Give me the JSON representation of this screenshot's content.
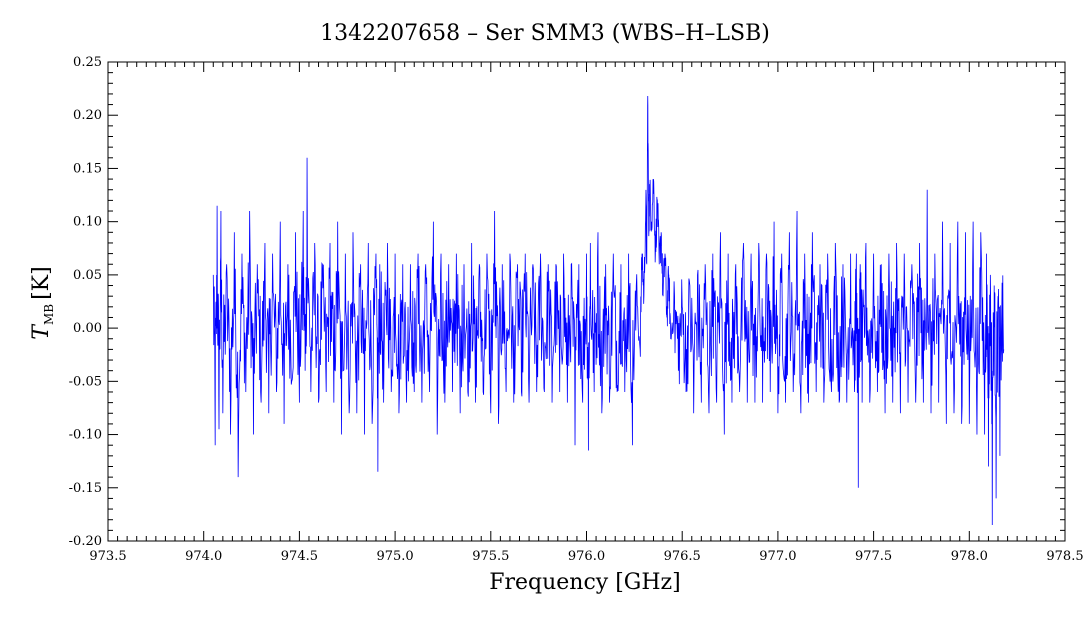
{
  "chart_data": {
    "type": "line",
    "title": "1342207658 – Ser SMM3 (WBS–H–LSB)",
    "xlabel": "Frequency [GHz]",
    "ylabel_main": "T",
    "ylabel_sub": "MB",
    "ylabel_unit": "[K]",
    "xlim": [
      973.5,
      978.5
    ],
    "ylim": [
      -0.2,
      0.25
    ],
    "x_ticks": [
      {
        "value": 973.5,
        "label": "973.5"
      },
      {
        "value": 974.0,
        "label": "974.0"
      },
      {
        "value": 974.5,
        "label": "974.5"
      },
      {
        "value": 975.0,
        "label": "975.0"
      },
      {
        "value": 975.5,
        "label": "975.5"
      },
      {
        "value": 976.0,
        "label": "976.0"
      },
      {
        "value": 976.5,
        "label": "976.5"
      },
      {
        "value": 977.0,
        "label": "977.0"
      },
      {
        "value": 977.5,
        "label": "977.5"
      },
      {
        "value": 978.0,
        "label": "978.0"
      },
      {
        "value": 978.5,
        "label": "978.5"
      }
    ],
    "y_ticks": [
      {
        "value": -0.2,
        "label": "-0.20"
      },
      {
        "value": -0.15,
        "label": "-0.15"
      },
      {
        "value": -0.1,
        "label": "-0.10"
      },
      {
        "value": -0.05,
        "label": "-0.05"
      },
      {
        "value": 0.0,
        "label": "0.00"
      },
      {
        "value": 0.05,
        "label": "0.05"
      },
      {
        "value": 0.1,
        "label": "0.10"
      },
      {
        "value": 0.15,
        "label": "0.15"
      },
      {
        "value": 0.2,
        "label": "0.20"
      },
      {
        "value": 0.25,
        "label": "0.25"
      }
    ],
    "grid": false,
    "series": [
      {
        "color": "#0000ff",
        "x_start": 974.05,
        "x_end": 978.18,
        "points": [
          [
            974.05,
            0.05
          ],
          [
            974.06,
            -0.11
          ],
          [
            974.07,
            0.115
          ],
          [
            974.08,
            -0.095
          ],
          [
            974.09,
            0.11
          ],
          [
            974.1,
            -0.08
          ],
          [
            974.12,
            0.06
          ],
          [
            974.14,
            -0.1
          ],
          [
            974.16,
            0.09
          ],
          [
            974.18,
            -0.14
          ],
          [
            974.2,
            0.07
          ],
          [
            974.22,
            -0.06
          ],
          [
            974.24,
            0.11
          ],
          [
            974.26,
            -0.1
          ],
          [
            974.28,
            0.06
          ],
          [
            974.3,
            -0.07
          ],
          [
            974.32,
            0.08
          ],
          [
            974.34,
            -0.08
          ],
          [
            974.36,
            0.07
          ],
          [
            974.38,
            -0.06
          ],
          [
            974.4,
            0.1
          ],
          [
            974.42,
            -0.09
          ],
          [
            974.44,
            0.06
          ],
          [
            974.46,
            -0.05
          ],
          [
            974.48,
            0.09
          ],
          [
            974.5,
            -0.07
          ],
          [
            974.52,
            0.11
          ],
          [
            974.53,
            -0.04
          ],
          [
            974.54,
            0.16
          ],
          [
            974.56,
            -0.06
          ],
          [
            974.58,
            0.08
          ],
          [
            974.6,
            -0.07
          ],
          [
            974.62,
            0.06
          ],
          [
            974.64,
            -0.06
          ],
          [
            974.66,
            0.08
          ],
          [
            974.68,
            -0.07
          ],
          [
            974.7,
            0.1
          ],
          [
            974.72,
            -0.1
          ],
          [
            974.74,
            0.07
          ],
          [
            974.76,
            -0.08
          ],
          [
            974.78,
            0.09
          ],
          [
            974.8,
            -0.08
          ],
          [
            974.82,
            0.06
          ],
          [
            974.84,
            -0.1
          ],
          [
            974.86,
            0.08
          ],
          [
            974.88,
            -0.09
          ],
          [
            974.9,
            0.07
          ],
          [
            974.91,
            -0.135
          ],
          [
            974.92,
            0.06
          ],
          [
            974.94,
            -0.07
          ],
          [
            974.96,
            0.08
          ],
          [
            974.98,
            -0.06
          ],
          [
            975.0,
            0.07
          ],
          [
            975.02,
            -0.08
          ],
          [
            975.04,
            0.06
          ],
          [
            975.06,
            -0.07
          ],
          [
            975.08,
            0.06
          ],
          [
            975.1,
            -0.06
          ],
          [
            975.12,
            0.07
          ],
          [
            975.14,
            -0.07
          ],
          [
            975.16,
            0.06
          ],
          [
            975.18,
            -0.06
          ],
          [
            975.2,
            0.1
          ],
          [
            975.22,
            -0.1
          ],
          [
            975.24,
            0.07
          ],
          [
            975.26,
            -0.07
          ],
          [
            975.28,
            0.06
          ],
          [
            975.3,
            -0.06
          ],
          [
            975.32,
            0.07
          ],
          [
            975.34,
            -0.08
          ],
          [
            975.36,
            0.06
          ],
          [
            975.38,
            -0.06
          ],
          [
            975.4,
            0.08
          ],
          [
            975.42,
            -0.07
          ],
          [
            975.44,
            0.06
          ],
          [
            975.46,
            -0.06
          ],
          [
            975.48,
            0.07
          ],
          [
            975.5,
            -0.08
          ],
          [
            975.52,
            0.11
          ],
          [
            975.54,
            -0.09
          ],
          [
            975.56,
            0.06
          ],
          [
            975.58,
            -0.06
          ],
          [
            975.6,
            0.07
          ],
          [
            975.62,
            -0.07
          ],
          [
            975.64,
            0.06
          ],
          [
            975.66,
            -0.06
          ],
          [
            975.68,
            0.07
          ],
          [
            975.7,
            -0.07
          ],
          [
            975.72,
            0.06
          ],
          [
            975.74,
            -0.06
          ],
          [
            975.76,
            0.07
          ],
          [
            975.78,
            -0.06
          ],
          [
            975.8,
            0.06
          ],
          [
            975.82,
            -0.07
          ],
          [
            975.84,
            0.06
          ],
          [
            975.86,
            -0.06
          ],
          [
            975.88,
            0.07
          ],
          [
            975.9,
            -0.07
          ],
          [
            975.92,
            0.06
          ],
          [
            975.94,
            -0.11
          ],
          [
            975.96,
            0.06
          ],
          [
            975.98,
            -0.07
          ],
          [
            976.0,
            0.07
          ],
          [
            976.01,
            -0.115
          ],
          [
            976.02,
            0.08
          ],
          [
            976.04,
            -0.06
          ],
          [
            976.06,
            0.09
          ],
          [
            976.08,
            -0.08
          ],
          [
            976.1,
            0.06
          ],
          [
            976.12,
            -0.07
          ],
          [
            976.14,
            0.07
          ],
          [
            976.16,
            -0.06
          ],
          [
            976.18,
            0.06
          ],
          [
            976.2,
            -0.06
          ],
          [
            976.22,
            0.07
          ],
          [
            976.24,
            -0.11
          ],
          [
            976.26,
            0.04
          ],
          [
            976.28,
            -0.02
          ],
          [
            976.29,
            0.07
          ],
          [
            976.3,
            0.03
          ],
          [
            976.31,
            0.12
          ],
          [
            976.315,
            0.06
          ],
          [
            976.32,
            0.218
          ],
          [
            976.325,
            0.09
          ],
          [
            976.33,
            0.13
          ],
          [
            976.34,
            0.1
          ],
          [
            976.35,
            0.14
          ],
          [
            976.36,
            0.07
          ],
          [
            976.37,
            0.12
          ],
          [
            976.38,
            0.06
          ],
          [
            976.39,
            0.09
          ],
          [
            976.4,
            0.03
          ],
          [
            976.41,
            0.07
          ],
          [
            976.42,
            0.01
          ],
          [
            976.43,
            0.05
          ],
          [
            976.44,
            -0.01
          ],
          [
            976.46,
            0.03
          ],
          [
            976.48,
            -0.04
          ],
          [
            976.5,
            0.02
          ],
          [
            976.52,
            -0.06
          ],
          [
            976.54,
            0.04
          ],
          [
            976.56,
            -0.08
          ],
          [
            976.58,
            0.05
          ],
          [
            976.6,
            -0.07
          ],
          [
            976.62,
            0.06
          ],
          [
            976.64,
            -0.08
          ],
          [
            976.66,
            0.07
          ],
          [
            976.68,
            -0.07
          ],
          [
            976.7,
            0.09
          ],
          [
            976.72,
            -0.1
          ],
          [
            976.74,
            0.07
          ],
          [
            976.76,
            -0.07
          ],
          [
            976.78,
            0.06
          ],
          [
            976.8,
            -0.06
          ],
          [
            976.82,
            0.08
          ],
          [
            976.84,
            -0.07
          ],
          [
            976.86,
            0.07
          ],
          [
            976.88,
            -0.07
          ],
          [
            976.9,
            0.08
          ],
          [
            976.92,
            -0.07
          ],
          [
            976.94,
            0.07
          ],
          [
            976.96,
            -0.06
          ],
          [
            976.98,
            0.1
          ],
          [
            977.0,
            -0.08
          ],
          [
            977.02,
            0.07
          ],
          [
            977.04,
            -0.07
          ],
          [
            977.06,
            0.09
          ],
          [
            977.08,
            -0.06
          ],
          [
            977.1,
            0.11
          ],
          [
            977.12,
            -0.08
          ],
          [
            977.14,
            0.07
          ],
          [
            977.16,
            -0.07
          ],
          [
            977.18,
            0.09
          ],
          [
            977.2,
            -0.06
          ],
          [
            977.22,
            0.06
          ],
          [
            977.24,
            -0.07
          ],
          [
            977.26,
            0.07
          ],
          [
            977.28,
            -0.06
          ],
          [
            977.3,
            0.08
          ],
          [
            977.32,
            -0.07
          ],
          [
            977.34,
            0.06
          ],
          [
            977.36,
            -0.07
          ],
          [
            977.38,
            0.07
          ],
          [
            977.4,
            -0.06
          ],
          [
            977.41,
            0.07
          ],
          [
            977.42,
            -0.15
          ],
          [
            977.43,
            0.06
          ],
          [
            977.44,
            -0.07
          ],
          [
            977.46,
            0.08
          ],
          [
            977.48,
            -0.07
          ],
          [
            977.5,
            0.07
          ],
          [
            977.52,
            -0.06
          ],
          [
            977.54,
            0.06
          ],
          [
            977.56,
            -0.08
          ],
          [
            977.58,
            0.07
          ],
          [
            977.6,
            -0.07
          ],
          [
            977.62,
            0.08
          ],
          [
            977.64,
            -0.08
          ],
          [
            977.66,
            0.07
          ],
          [
            977.68,
            -0.07
          ],
          [
            977.7,
            0.06
          ],
          [
            977.72,
            -0.07
          ],
          [
            977.74,
            0.08
          ],
          [
            977.76,
            -0.07
          ],
          [
            977.78,
            0.13
          ],
          [
            977.8,
            -0.08
          ],
          [
            977.82,
            0.07
          ],
          [
            977.84,
            -0.07
          ],
          [
            977.86,
            0.1
          ],
          [
            977.88,
            -0.09
          ],
          [
            977.9,
            0.08
          ],
          [
            977.92,
            -0.08
          ],
          [
            977.94,
            0.1
          ],
          [
            977.96,
            -0.09
          ],
          [
            977.98,
            0.09
          ],
          [
            978.0,
            -0.09
          ],
          [
            978.02,
            0.1
          ],
          [
            978.04,
            -0.1
          ],
          [
            978.06,
            0.09
          ],
          [
            978.08,
            -0.1
          ],
          [
            978.09,
            0.07
          ],
          [
            978.1,
            -0.13
          ],
          [
            978.11,
            0.05
          ],
          [
            978.12,
            -0.185
          ],
          [
            978.13,
            0.04
          ],
          [
            978.14,
            -0.16
          ],
          [
            978.15,
            0.03
          ],
          [
            978.16,
            -0.12
          ],
          [
            978.17,
            0.02
          ],
          [
            978.18,
            -0.02
          ]
        ]
      }
    ]
  }
}
